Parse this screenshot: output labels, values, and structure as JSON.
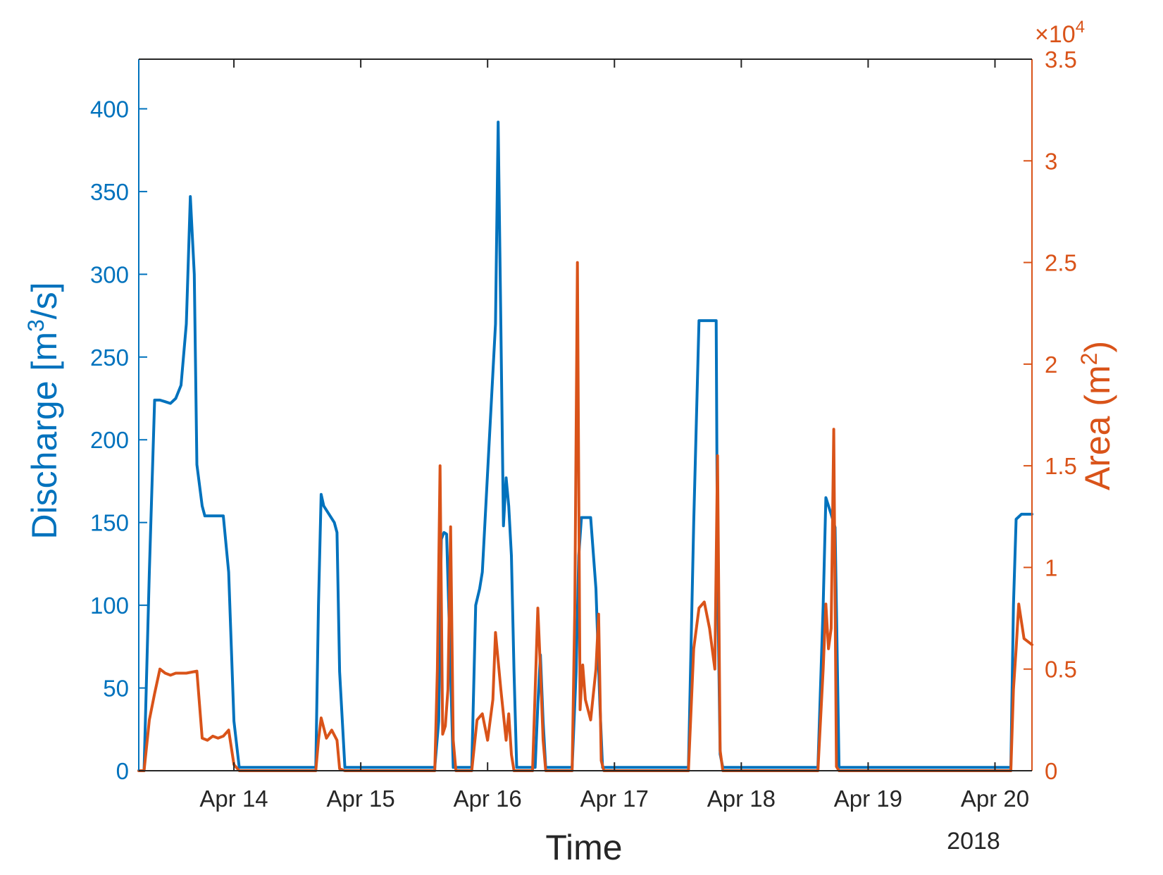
{
  "chart_data": {
    "type": "line",
    "xlabel": "Time",
    "x_secondary_label": "2018",
    "x_ticks": [
      "Apr 14",
      "Apr 15",
      "Apr 16",
      "Apr 17",
      "Apr 18",
      "Apr 19",
      "Apr 20"
    ],
    "x_start": "Apr 13 06:00",
    "x_end": "Apr 20 07:00",
    "grid": false,
    "left_axis": {
      "label_text": "Discharge [m",
      "label_sup": "3",
      "label_tail": "/s]",
      "ylim": [
        0,
        430
      ],
      "ticks": [
        "0",
        "50",
        "100",
        "150",
        "200",
        "250",
        "300",
        "350",
        "400"
      ],
      "color": "#0072BD"
    },
    "right_axis": {
      "label_text": "Area (m",
      "label_sup": "2",
      "label_tail": ")",
      "ylim": [
        0,
        35000
      ],
      "ticks": [
        "0",
        "0.5",
        "1",
        "1.5",
        "2",
        "2.5",
        "3",
        "3.5"
      ],
      "exponent_base": "×10",
      "exponent_sup": "4",
      "color": "#D95319"
    },
    "series": [
      {
        "axis": "left",
        "color": "#0072BD",
        "points": [
          [
            "Apr 13 06:00",
            0
          ],
          [
            "Apr 13 07:00",
            0
          ],
          [
            "Apr 13 08:00",
            120
          ],
          [
            "Apr 13 09:00",
            224
          ],
          [
            "Apr 13 10:00",
            224
          ],
          [
            "Apr 13 11:00",
            223
          ],
          [
            "Apr 13 12:00",
            222
          ],
          [
            "Apr 13 13:00",
            225
          ],
          [
            "Apr 13 14:00",
            233
          ],
          [
            "Apr 13 15:00",
            270
          ],
          [
            "Apr 13 15:45",
            347
          ],
          [
            "Apr 13 16:30",
            300
          ],
          [
            "Apr 13 17:00",
            185
          ],
          [
            "Apr 13 18:00",
            160
          ],
          [
            "Apr 13 18:30",
            154
          ],
          [
            "Apr 13 22:00",
            154
          ],
          [
            "Apr 13 23:00",
            120
          ],
          [
            "Apr 14 00:00",
            30
          ],
          [
            "Apr 14 01:00",
            2
          ],
          [
            "Apr 14 04:00",
            2
          ],
          [
            "Apr 14 08:00",
            2
          ],
          [
            "Apr 14 12:00",
            2
          ],
          [
            "Apr 14 15:30",
            2
          ],
          [
            "Apr 14 16:00",
            100
          ],
          [
            "Apr 14 16:30",
            167
          ],
          [
            "Apr 14 17:00",
            160
          ],
          [
            "Apr 14 18:00",
            155
          ],
          [
            "Apr 14 19:00",
            150
          ],
          [
            "Apr 14 19:30",
            144
          ],
          [
            "Apr 14 20:00",
            60
          ],
          [
            "Apr 14 21:00",
            2
          ],
          [
            "Apr 15 04:00",
            2
          ],
          [
            "Apr 15 12:00",
            2
          ],
          [
            "Apr 15 14:00",
            2
          ],
          [
            "Apr 15 14:45",
            30
          ],
          [
            "Apr 15 15:15",
            140
          ],
          [
            "Apr 15 15:45",
            144
          ],
          [
            "Apr 15 16:15",
            143
          ],
          [
            "Apr 15 17:00",
            60
          ],
          [
            "Apr 15 17:30",
            2
          ],
          [
            "Apr 15 20:00",
            2
          ],
          [
            "Apr 15 21:00",
            2
          ],
          [
            "Apr 15 21:45",
            100
          ],
          [
            "Apr 15 22:30",
            110
          ],
          [
            "Apr 15 23:00",
            120
          ],
          [
            "Apr 16 00:30",
            210
          ],
          [
            "Apr 16 01:30",
            270
          ],
          [
            "Apr 16 02:00",
            392
          ],
          [
            "Apr 16 02:30",
            270
          ],
          [
            "Apr 16 03:00",
            148
          ],
          [
            "Apr 16 03:30",
            177
          ],
          [
            "Apr 16 04:00",
            160
          ],
          [
            "Apr 16 04:30",
            130
          ],
          [
            "Apr 16 05:00",
            60
          ],
          [
            "Apr 16 05:30",
            2
          ],
          [
            "Apr 16 07:00",
            2
          ],
          [
            "Apr 16 09:00",
            2
          ],
          [
            "Apr 16 09:30",
            40
          ],
          [
            "Apr 16 10:00",
            70
          ],
          [
            "Apr 16 10:30",
            30
          ],
          [
            "Apr 16 11:00",
            2
          ],
          [
            "Apr 16 13:00",
            2
          ],
          [
            "Apr 16 16:00",
            2
          ],
          [
            "Apr 16 16:45",
            60
          ],
          [
            "Apr 16 17:15",
            130
          ],
          [
            "Apr 16 17:45",
            153
          ],
          [
            "Apr 16 19:30",
            153
          ],
          [
            "Apr 16 20:30",
            110
          ],
          [
            "Apr 16 21:15",
            40
          ],
          [
            "Apr 16 21:45",
            2
          ],
          [
            "Apr 17 04:00",
            2
          ],
          [
            "Apr 17 12:00",
            2
          ],
          [
            "Apr 17 14:00",
            2
          ],
          [
            "Apr 17 15:00",
            150
          ],
          [
            "Apr 17 16:00",
            272
          ],
          [
            "Apr 17 18:30",
            272
          ],
          [
            "Apr 17 19:15",
            272
          ],
          [
            "Apr 17 19:30",
            120
          ],
          [
            "Apr 17 20:00",
            10
          ],
          [
            "Apr 17 20:30",
            2
          ],
          [
            "Apr 18 04:00",
            2
          ],
          [
            "Apr 18 12:00",
            2
          ],
          [
            "Apr 18 14:30",
            2
          ],
          [
            "Apr 18 15:30",
            100
          ],
          [
            "Apr 18 16:00",
            165
          ],
          [
            "Apr 18 17:00",
            155
          ],
          [
            "Apr 18 17:45",
            147
          ],
          [
            "Apr 18 18:30",
            2
          ],
          [
            "Apr 19 04:00",
            2
          ],
          [
            "Apr 19 12:00",
            2
          ],
          [
            "Apr 19 20:00",
            2
          ],
          [
            "Apr 20 02:00",
            2
          ],
          [
            "Apr 20 03:00",
            2
          ],
          [
            "Apr 20 03:30",
            100
          ],
          [
            "Apr 20 04:00",
            152
          ],
          [
            "Apr 20 05:00",
            155
          ],
          [
            "Apr 20 07:00",
            155
          ]
        ]
      },
      {
        "axis": "right",
        "color": "#D95319",
        "points": [
          [
            "Apr 13 06:00",
            0
          ],
          [
            "Apr 13 07:00",
            0
          ],
          [
            "Apr 13 08:00",
            2500
          ],
          [
            "Apr 13 09:00",
            3800
          ],
          [
            "Apr 13 10:00",
            5000
          ],
          [
            "Apr 13 11:00",
            4800
          ],
          [
            "Apr 13 12:00",
            4700
          ],
          [
            "Apr 13 13:00",
            4800
          ],
          [
            "Apr 13 15:00",
            4800
          ],
          [
            "Apr 13 17:00",
            4900
          ],
          [
            "Apr 13 18:00",
            1600
          ],
          [
            "Apr 13 19:00",
            1500
          ],
          [
            "Apr 13 20:00",
            1700
          ],
          [
            "Apr 13 21:00",
            1600
          ],
          [
            "Apr 13 22:00",
            1700
          ],
          [
            "Apr 13 23:00",
            2000
          ],
          [
            "Apr 14 00:00",
            300
          ],
          [
            "Apr 14 01:00",
            0
          ],
          [
            "Apr 14 08:00",
            0
          ],
          [
            "Apr 14 15:30",
            0
          ],
          [
            "Apr 14 16:00",
            1500
          ],
          [
            "Apr 14 16:30",
            2600
          ],
          [
            "Apr 14 17:30",
            1600
          ],
          [
            "Apr 14 18:30",
            2000
          ],
          [
            "Apr 14 19:30",
            1500
          ],
          [
            "Apr 14 20:00",
            100
          ],
          [
            "Apr 14 21:00",
            0
          ],
          [
            "Apr 15 04:00",
            0
          ],
          [
            "Apr 15 14:00",
            0
          ],
          [
            "Apr 15 14:30",
            5000
          ],
          [
            "Apr 15 15:00",
            15000
          ],
          [
            "Apr 15 15:30",
            1800
          ],
          [
            "Apr 15 16:00",
            2200
          ],
          [
            "Apr 15 16:30",
            4000
          ],
          [
            "Apr 15 17:00",
            12000
          ],
          [
            "Apr 15 17:30",
            1500
          ],
          [
            "Apr 15 18:00",
            0
          ],
          [
            "Apr 15 21:00",
            0
          ],
          [
            "Apr 15 22:00",
            2500
          ],
          [
            "Apr 15 23:00",
            2800
          ],
          [
            "Apr 16 00:00",
            1500
          ],
          [
            "Apr 16 01:00",
            3500
          ],
          [
            "Apr 16 01:30",
            6800
          ],
          [
            "Apr 16 02:30",
            4000
          ],
          [
            "Apr 16 03:30",
            1500
          ],
          [
            "Apr 16 04:00",
            2800
          ],
          [
            "Apr 16 04:30",
            800
          ],
          [
            "Apr 16 05:00",
            0
          ],
          [
            "Apr 16 07:00",
            0
          ],
          [
            "Apr 16 08:30",
            0
          ],
          [
            "Apr 16 09:30",
            8000
          ],
          [
            "Apr 16 10:00",
            5000
          ],
          [
            "Apr 16 10:30",
            1500
          ],
          [
            "Apr 16 11:00",
            0
          ],
          [
            "Apr 16 13:00",
            0
          ],
          [
            "Apr 16 16:00",
            0
          ],
          [
            "Apr 16 16:30",
            8000
          ],
          [
            "Apr 16 17:00",
            25000
          ],
          [
            "Apr 16 17:30",
            3000
          ],
          [
            "Apr 16 18:00",
            5200
          ],
          [
            "Apr 16 18:30",
            3500
          ],
          [
            "Apr 16 19:30",
            2500
          ],
          [
            "Apr 16 20:30",
            5000
          ],
          [
            "Apr 16 21:00",
            7700
          ],
          [
            "Apr 16 21:30",
            500
          ],
          [
            "Apr 16 22:00",
            0
          ],
          [
            "Apr 17 04:00",
            0
          ],
          [
            "Apr 17 14:00",
            0
          ],
          [
            "Apr 17 15:00",
            6000
          ],
          [
            "Apr 17 16:00",
            8000
          ],
          [
            "Apr 17 17:00",
            8300
          ],
          [
            "Apr 17 18:00",
            7000
          ],
          [
            "Apr 17 19:00",
            5000
          ],
          [
            "Apr 17 19:30",
            15500
          ],
          [
            "Apr 17 20:00",
            1000
          ],
          [
            "Apr 17 20:30",
            0
          ],
          [
            "Apr 18 04:00",
            0
          ],
          [
            "Apr 18 14:30",
            0
          ],
          [
            "Apr 18 15:30",
            5000
          ],
          [
            "Apr 18 16:00",
            8200
          ],
          [
            "Apr 18 16:30",
            6000
          ],
          [
            "Apr 18 17:00",
            7000
          ],
          [
            "Apr 18 17:30",
            16800
          ],
          [
            "Apr 18 18:00",
            200
          ],
          [
            "Apr 18 18:30",
            0
          ],
          [
            "Apr 19 04:00",
            0
          ],
          [
            "Apr 20 02:00",
            0
          ],
          [
            "Apr 20 03:00",
            0
          ],
          [
            "Apr 20 03:30",
            4000
          ],
          [
            "Apr 20 04:00",
            6000
          ],
          [
            "Apr 20 04:30",
            8200
          ],
          [
            "Apr 20 05:30",
            6500
          ],
          [
            "Apr 20 07:00",
            6200
          ]
        ]
      }
    ]
  }
}
